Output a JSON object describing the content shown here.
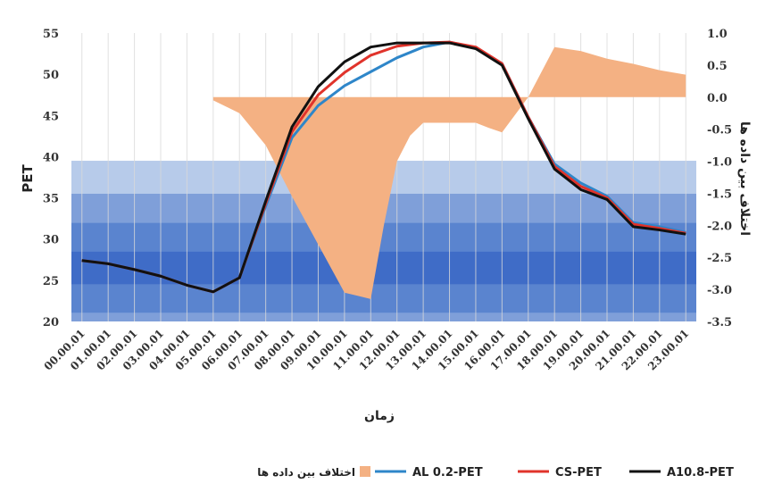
{
  "chart_data": {
    "type": "line",
    "categories": [
      "00.00.01",
      "01.00.01",
      "02.00.01",
      "03.00.01",
      "04.00.01",
      "05.00.01",
      "06.00.01",
      "07.00.01",
      "08.00.01",
      "09.00.01",
      "10.00.01",
      "11.00.01",
      "12.00.01",
      "13.00.01",
      "14.00.01",
      "15.00.01",
      "16.00.01",
      "17.00.01",
      "18.00.01",
      "19.00.01",
      "20.00.01",
      "21.00.01",
      "22.00.01",
      "23.00.01"
    ],
    "xlabel": "زمان",
    "ylabel": "PET",
    "y2label": "اختلاف بین داده ها",
    "ylim": [
      20,
      55
    ],
    "y2lim": [
      -3.5,
      1.0
    ],
    "yticks": [
      "20",
      "25",
      "30",
      "35",
      "40",
      "45",
      "50",
      "55"
    ],
    "y2ticks": [
      "-3.5",
      "-3.0",
      "-2.5",
      "-2.0",
      "-1.5",
      "-1.0",
      "-0.5",
      "0.0",
      "0.5",
      "1.0"
    ],
    "bands": [
      {
        "from": 39.5,
        "to": 55,
        "color": "#ffffff"
      },
      {
        "from": 35.5,
        "to": 39.5,
        "color": "#b7cbea"
      },
      {
        "from": 32.0,
        "to": 35.5,
        "color": "#7f9fd9"
      },
      {
        "from": 28.5,
        "to": 32.0,
        "color": "#5a84cf"
      },
      {
        "from": 24.5,
        "to": 28.5,
        "color": "#3f6cc7"
      },
      {
        "from": 21.0,
        "to": 24.5,
        "color": "#5a84cf"
      },
      {
        "from": 20.0,
        "to": 21.0,
        "color": "#7f9fd9"
      }
    ],
    "series": [
      {
        "name": "AL 0.2-PET",
        "color": "#2e86c9",
        "axis": "left",
        "values": [
          27.4,
          27.0,
          26.3,
          25.5,
          24.4,
          23.6,
          25.3,
          34.0,
          42.3,
          46.2,
          48.6,
          50.3,
          52.0,
          53.3,
          53.9,
          53.2,
          51.3,
          44.8,
          39.1,
          36.8,
          35.2,
          32.0,
          31.5,
          30.8
        ]
      },
      {
        "name": "CS-PET",
        "color": "#e0332b",
        "axis": "left",
        "values": [
          27.4,
          27.0,
          26.3,
          25.5,
          24.4,
          23.6,
          25.3,
          34.3,
          43.0,
          47.5,
          50.2,
          52.3,
          53.4,
          53.8,
          53.9,
          53.3,
          51.3,
          44.8,
          38.8,
          36.4,
          35.0,
          31.8,
          31.3,
          30.7
        ]
      },
      {
        "name": "A10.8-PET",
        "color": "#111111",
        "axis": "left",
        "values": [
          27.4,
          27.0,
          26.3,
          25.5,
          24.4,
          23.6,
          25.3,
          34.6,
          43.6,
          48.5,
          51.5,
          53.3,
          53.8,
          53.8,
          53.8,
          53.1,
          51.1,
          44.6,
          38.5,
          36.0,
          34.8,
          31.5,
          31.1,
          30.6
        ]
      },
      {
        "name": "اختلاف بین داده ها",
        "color": "#f4b183",
        "axis": "right",
        "kind": "area",
        "x": [
          5,
          6,
          7,
          8,
          9,
          10,
          10.5,
          11,
          11.5,
          12,
          12.5,
          13,
          14,
          15,
          15.5,
          16,
          17,
          18,
          19,
          20,
          21,
          22,
          23
        ],
        "values": [
          -0.05,
          -0.25,
          -0.75,
          -1.55,
          -2.3,
          -3.05,
          -3.1,
          -3.15,
          -2.0,
          -1.0,
          -0.6,
          -0.4,
          -0.4,
          -0.4,
          -0.48,
          -0.55,
          0.0,
          0.78,
          0.72,
          0.6,
          0.52,
          0.42,
          0.35
        ]
      }
    ]
  }
}
